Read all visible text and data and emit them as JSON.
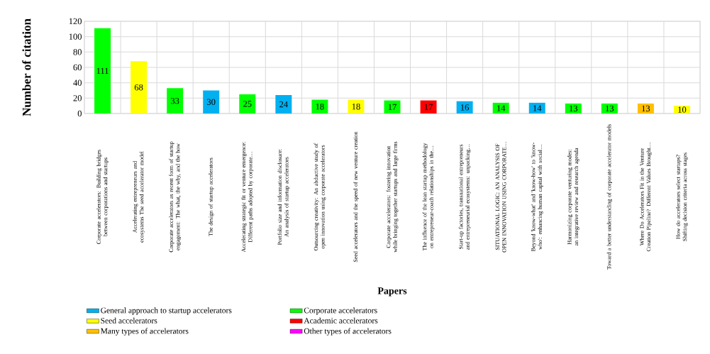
{
  "chart_data": {
    "type": "bar",
    "xlabel": "Papers",
    "ylabel": "Number of citation",
    "categories": [
      "Corporate accelerators: Building bridges between corporations and startups",
      "Accelerating entrepreneurs and ecosystems The seed accelerator model",
      "Corporate accelerators as recent form of startup engagement: The what, the why, and the how",
      "The design of startup accelerators",
      "Accelerating strategic fit or venture emergence: Different paths adopted by corporate…",
      "Portfolio size and information disclosure: An analysis of startup accelerators",
      "Outsourcing creativity: An abductive study of open innovation using corporate accelerators",
      "Seed accelerators and the speed of new venture creation",
      "Corporate accelerators: fostering innovation while bringing together startups and large firms",
      "The influence of the lean startup methodology on entrepreneur-coach relationships in the…",
      "Start-up factories, transnational entrepreneurs and entrepreneurial ecosystems: unpacking…",
      "SITUATIONAL LOGIC: AN ANALYSIS OF OPEN INNOVATION USING CORPORATE…",
      "Beyond 'know-what' and 'know-how' to 'know-who': enhancing human capital with social…",
      "Harmonizing corporate venturing modes: an integrative review and research agenda",
      "Toward a better understanding of corporate accelerator models",
      "Where Do Accelerators Fit in the Venture Creation Pipeline? Different Values Brought…",
      "How do accelerators select startups? Shifting decision criteria across stages"
    ],
    "series": [
      {
        "name": "General approach to startup accelerators",
        "color": "#00b0f0",
        "values": [
          null,
          null,
          null,
          30,
          null,
          24,
          null,
          null,
          null,
          null,
          16,
          null,
          14,
          null,
          null,
          null,
          null
        ]
      },
      {
        "name": "Corporate accelerators",
        "color": "#00ff00",
        "values": [
          111,
          null,
          33,
          null,
          25,
          null,
          18,
          null,
          17,
          null,
          null,
          14,
          null,
          13,
          13,
          null,
          null
        ]
      },
      {
        "name": "Seed accelerators",
        "color": "#ffff00",
        "values": [
          null,
          68,
          null,
          null,
          null,
          null,
          null,
          18,
          null,
          null,
          null,
          null,
          null,
          null,
          null,
          null,
          10
        ]
      },
      {
        "name": "Academic accelerators",
        "color": "#ff0000",
        "values": [
          null,
          null,
          null,
          null,
          null,
          null,
          null,
          null,
          null,
          17,
          null,
          null,
          null,
          null,
          null,
          null,
          null
        ]
      },
      {
        "name": "Many types of accelerators",
        "color": "#ffc000",
        "values": [
          null,
          null,
          null,
          null,
          null,
          null,
          null,
          null,
          null,
          null,
          null,
          null,
          null,
          null,
          null,
          13,
          null
        ]
      },
      {
        "name": "Other types of accelerators",
        "color": "#ff00ff",
        "values": [
          null,
          null,
          null,
          null,
          null,
          null,
          null,
          null,
          null,
          null,
          null,
          null,
          null,
          null,
          null,
          null,
          null
        ]
      }
    ],
    "ylim": [
      0,
      120
    ],
    "yticks": [
      0,
      20,
      40,
      60,
      80,
      100,
      120
    ],
    "grid": true,
    "legend": "bottom",
    "data_labels": true
  }
}
